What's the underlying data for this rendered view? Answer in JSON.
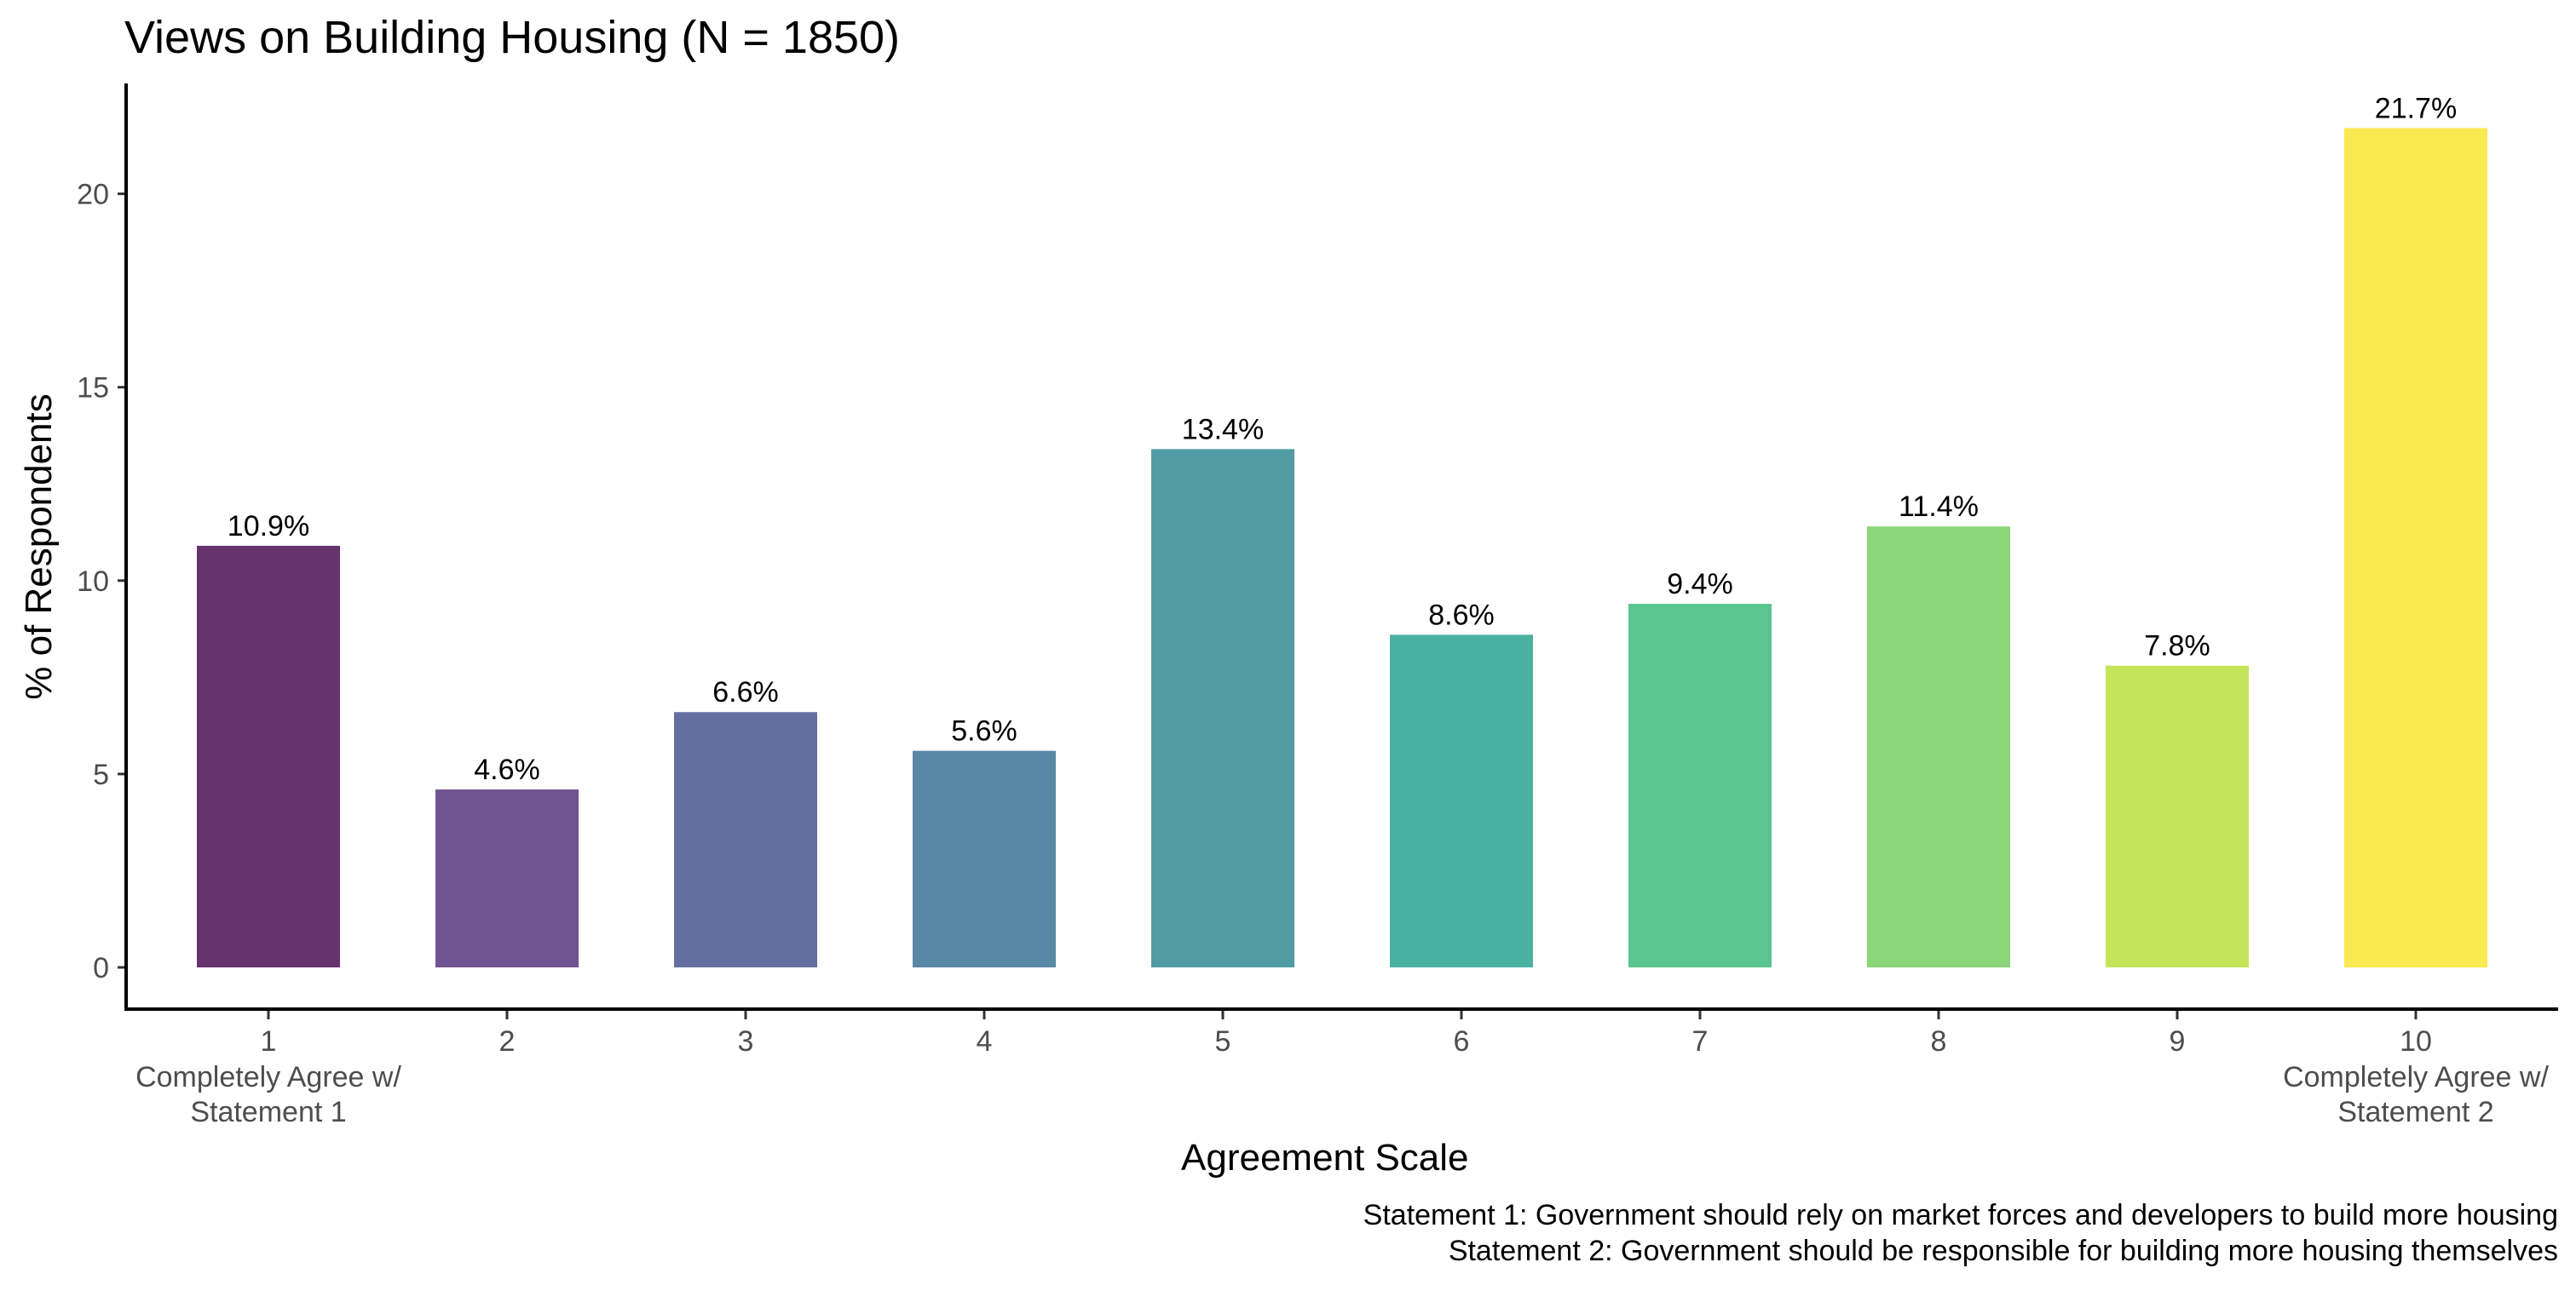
{
  "chart_data": {
    "type": "bar",
    "title": "Views on Building Housing (N = 1850)",
    "xlabel": "Agreement Scale",
    "ylabel": "% of Respondents",
    "ylim": [
      0,
      22.7
    ],
    "y_ticks": [
      0,
      5,
      10,
      15,
      20
    ],
    "grid": false,
    "legend": "none",
    "categories": [
      "1",
      "2",
      "3",
      "4",
      "5",
      "6",
      "7",
      "8",
      "9",
      "10"
    ],
    "category_sublabels": {
      "1": [
        "Completely Agree w/",
        "Statement 1"
      ],
      "10": [
        "Completely Agree w/",
        "Statement 2"
      ]
    },
    "values": [
      10.9,
      4.6,
      6.6,
      5.6,
      13.4,
      8.6,
      9.4,
      11.4,
      7.8,
      21.7
    ],
    "data_labels": [
      "10.9%",
      "4.6%",
      "6.6%",
      "5.6%",
      "13.4%",
      "8.6%",
      "9.4%",
      "11.4%",
      "7.8%",
      "21.7%"
    ],
    "colors": [
      "#67336f",
      "#6e5591",
      "#656f9f",
      "#5988a5",
      "#519ca4",
      "#4bb1a0",
      "#5bc591",
      "#8ad578",
      "#c4e45a",
      "#fbe952"
    ],
    "caption": [
      "Statement 1: Government should rely on market forces and developers to build more housing",
      "Statement 2: Government should be responsible for building more housing themselves"
    ]
  }
}
